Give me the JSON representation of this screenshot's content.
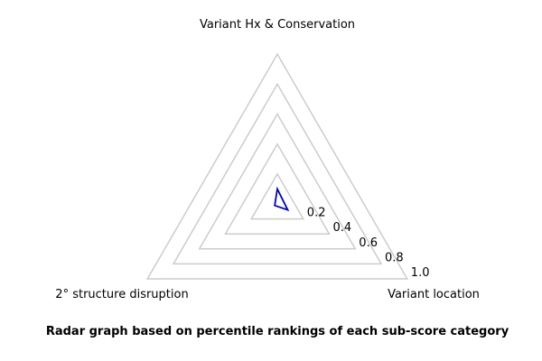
{
  "chart_data": {
    "type": "radar",
    "title": "Radar graph based on percentile rankings of each sub-score category",
    "axes": [
      "Variant Hx & Conservation",
      "Variant location",
      "2° structure disruption"
    ],
    "rlim": [
      0,
      1.0
    ],
    "ticks": [
      "0.2",
      "0.4",
      "0.6",
      "0.8",
      "1.0"
    ],
    "tick_values": [
      0.2,
      0.4,
      0.6,
      0.8,
      1.0
    ],
    "grid": true,
    "series": [
      {
        "values": [
          0.1,
          0.08,
          0.02
        ],
        "color": "#0000cc"
      }
    ],
    "grid_color": "#cccccc"
  }
}
